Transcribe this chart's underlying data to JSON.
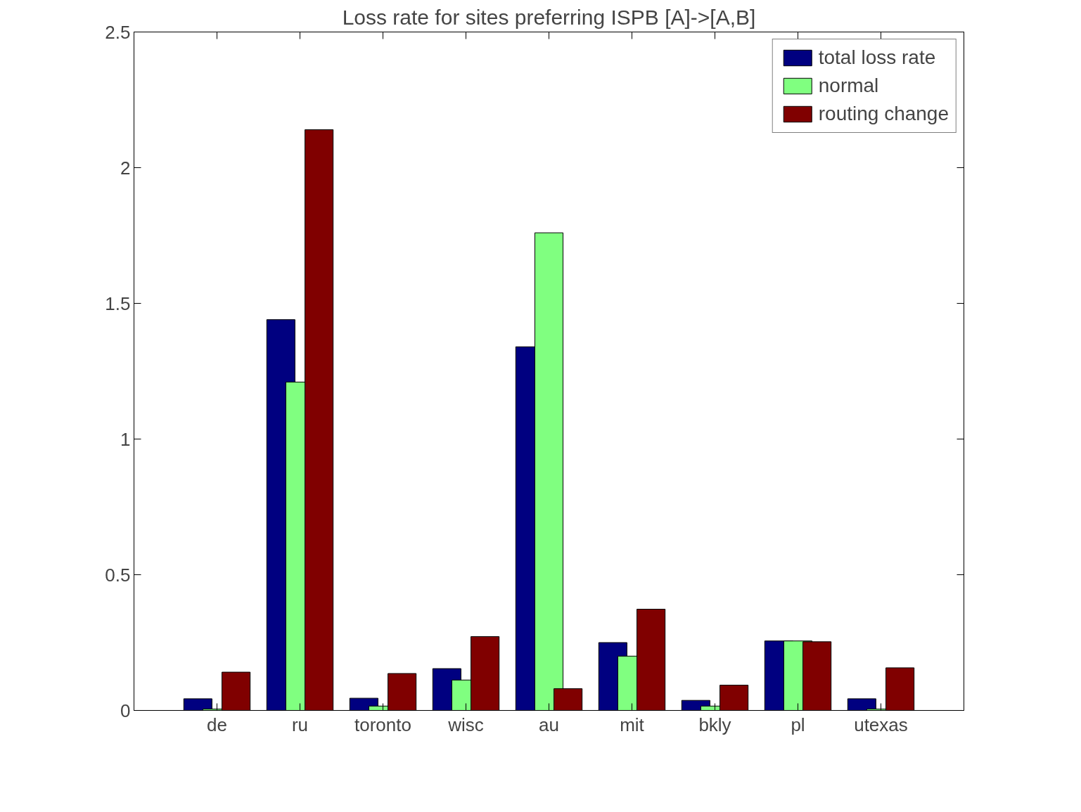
{
  "chart_data": {
    "type": "bar",
    "title": "Loss rate for sites preferring ISPB [A]->[A,B]",
    "categories": [
      "de",
      "ru",
      "toronto",
      "wisc",
      "au",
      "mit",
      "bkly",
      "pl",
      "utexas"
    ],
    "series": [
      {
        "name": "total loss rate",
        "color": "#000080",
        "values": [
          0.043,
          1.44,
          0.045,
          0.154,
          1.34,
          0.25,
          0.037,
          0.256,
          0.043
        ]
      },
      {
        "name": "normal",
        "color": "#80ff80",
        "values": [
          0.005,
          1.21,
          0.016,
          0.112,
          1.76,
          0.2,
          0.016,
          0.256,
          0.005
        ]
      },
      {
        "name": "routing change",
        "color": "#800000",
        "values": [
          0.141,
          2.14,
          0.136,
          0.272,
          0.08,
          0.373,
          0.093,
          0.253,
          0.157
        ]
      }
    ],
    "ylim": [
      0,
      2.5
    ],
    "yticks": [
      0,
      0.5,
      1,
      1.5,
      2,
      2.5
    ],
    "legend": "top right",
    "grid": false
  }
}
